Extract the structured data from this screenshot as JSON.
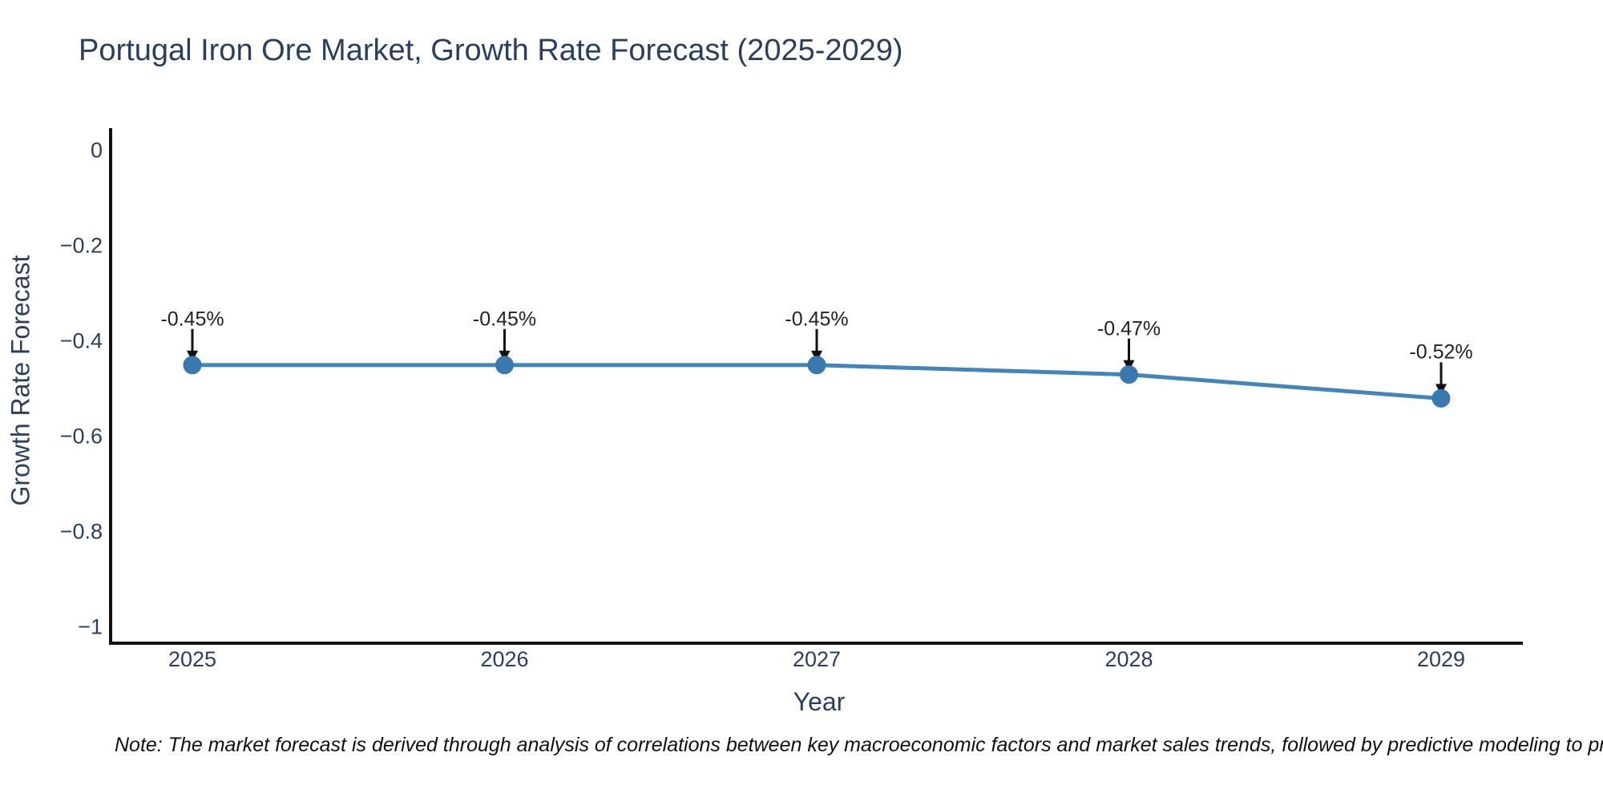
{
  "title": "Portugal Iron Ore Market, Growth Rate Forecast (2025-2029)",
  "note": "Note: The market forecast is derived through analysis of correlations between key macroeconomic factors and market sales trends, followed by predictive modeling to project future sales",
  "colors": {
    "text": "#2a3f5f",
    "axis_line": "#111111",
    "line": "#4484bd",
    "marker": "#3a78b0",
    "arrow": "#111111",
    "annotation_text": "#222222",
    "background": "#ffffff"
  },
  "chart_data": {
    "type": "line",
    "title": "Portugal Iron Ore Market, Growth Rate Forecast (2025-2029)",
    "xlabel": "Year",
    "ylabel": "Growth Rate Forecast",
    "x": [
      2025,
      2026,
      2027,
      2028,
      2029
    ],
    "y": [
      -0.45,
      -0.45,
      -0.45,
      -0.47,
      -0.52
    ],
    "series": [
      {
        "name": "Growth Rate Forecast",
        "values": [
          -0.45,
          -0.45,
          -0.45,
          -0.47,
          -0.52
        ]
      }
    ],
    "point_labels": [
      "-0.45%",
      "-0.45%",
      "-0.45%",
      "-0.47%",
      "-0.52%"
    ],
    "xticks": [
      "2025",
      "2026",
      "2027",
      "2028",
      "2029"
    ],
    "yticks": {
      "values": [
        0,
        -0.2,
        -0.4,
        -0.6,
        -0.8,
        -1
      ],
      "labels": [
        "0",
        "−0.2",
        "−0.4",
        "−0.6",
        "−0.8",
        "−1"
      ]
    },
    "ylim": [
      -1.08,
      0.05
    ],
    "grid": false,
    "legend_position": "none",
    "marker": "circle",
    "annotation_arrows": true
  }
}
